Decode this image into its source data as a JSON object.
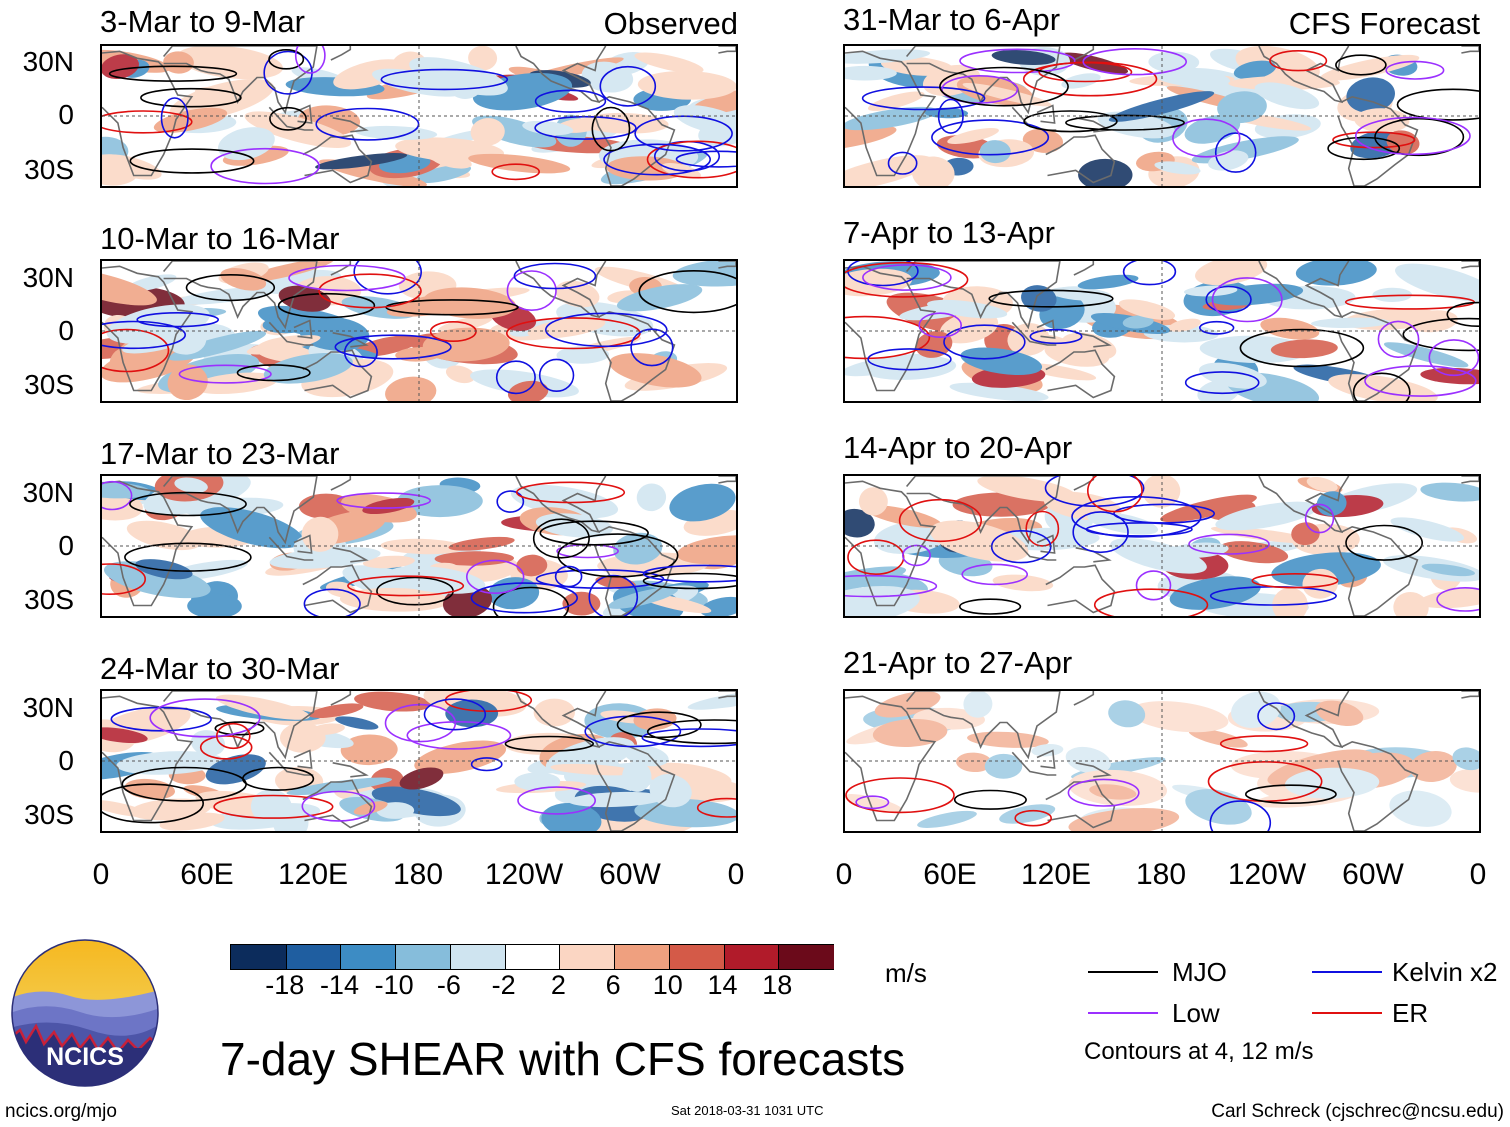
{
  "panels": {
    "observed_tag": "Observed",
    "forecast_tag": "CFS Forecast",
    "left": [
      {
        "title": "3-Mar to 9-Mar"
      },
      {
        "title": "10-Mar to 16-Mar"
      },
      {
        "title": "17-Mar to 23-Mar"
      },
      {
        "title": "24-Mar to 30-Mar"
      }
    ],
    "right": [
      {
        "title": "31-Mar to 6-Apr"
      },
      {
        "title": "7-Apr to 13-Apr"
      },
      {
        "title": "14-Apr to 20-Apr"
      },
      {
        "title": "21-Apr to 27-Apr"
      }
    ]
  },
  "axes": {
    "lat_labels": [
      "30N",
      "0",
      "30S"
    ],
    "lon_labels": [
      "0",
      "60E",
      "120E",
      "180",
      "120W",
      "60W",
      "0"
    ]
  },
  "colorbar": {
    "ticks": [
      "-18",
      "-14",
      "-10",
      "-6",
      "-2",
      "2",
      "6",
      "10",
      "14",
      "18"
    ],
    "units": "m/s",
    "colors": [
      "#0c2c5c",
      "#1f5ea0",
      "#3d8cc4",
      "#86bddb",
      "#cfe4f0",
      "#ffffff",
      "#fbd6c3",
      "#efa07f",
      "#d45a48",
      "#b11b2a",
      "#6b0a1a"
    ]
  },
  "legend": {
    "mjo": "MJO",
    "low": "Low",
    "kelvin": "Kelvin x2",
    "er": "ER",
    "contours_note": "Contours at 4, 12 m/s",
    "colors": {
      "mjo": "#000000",
      "low": "#9b30ff",
      "kelvin": "#1010e0",
      "er": "#e01010"
    }
  },
  "logo": {
    "text": "NCICS"
  },
  "footer": {
    "title": "7-day SHEAR with CFS forecasts",
    "url": "ncics.org/mjo",
    "timestamp": "Sat 2018-03-31 1031 UTC",
    "author": "Carl Schreck (cjschrec@ncsu.edu)"
  }
}
